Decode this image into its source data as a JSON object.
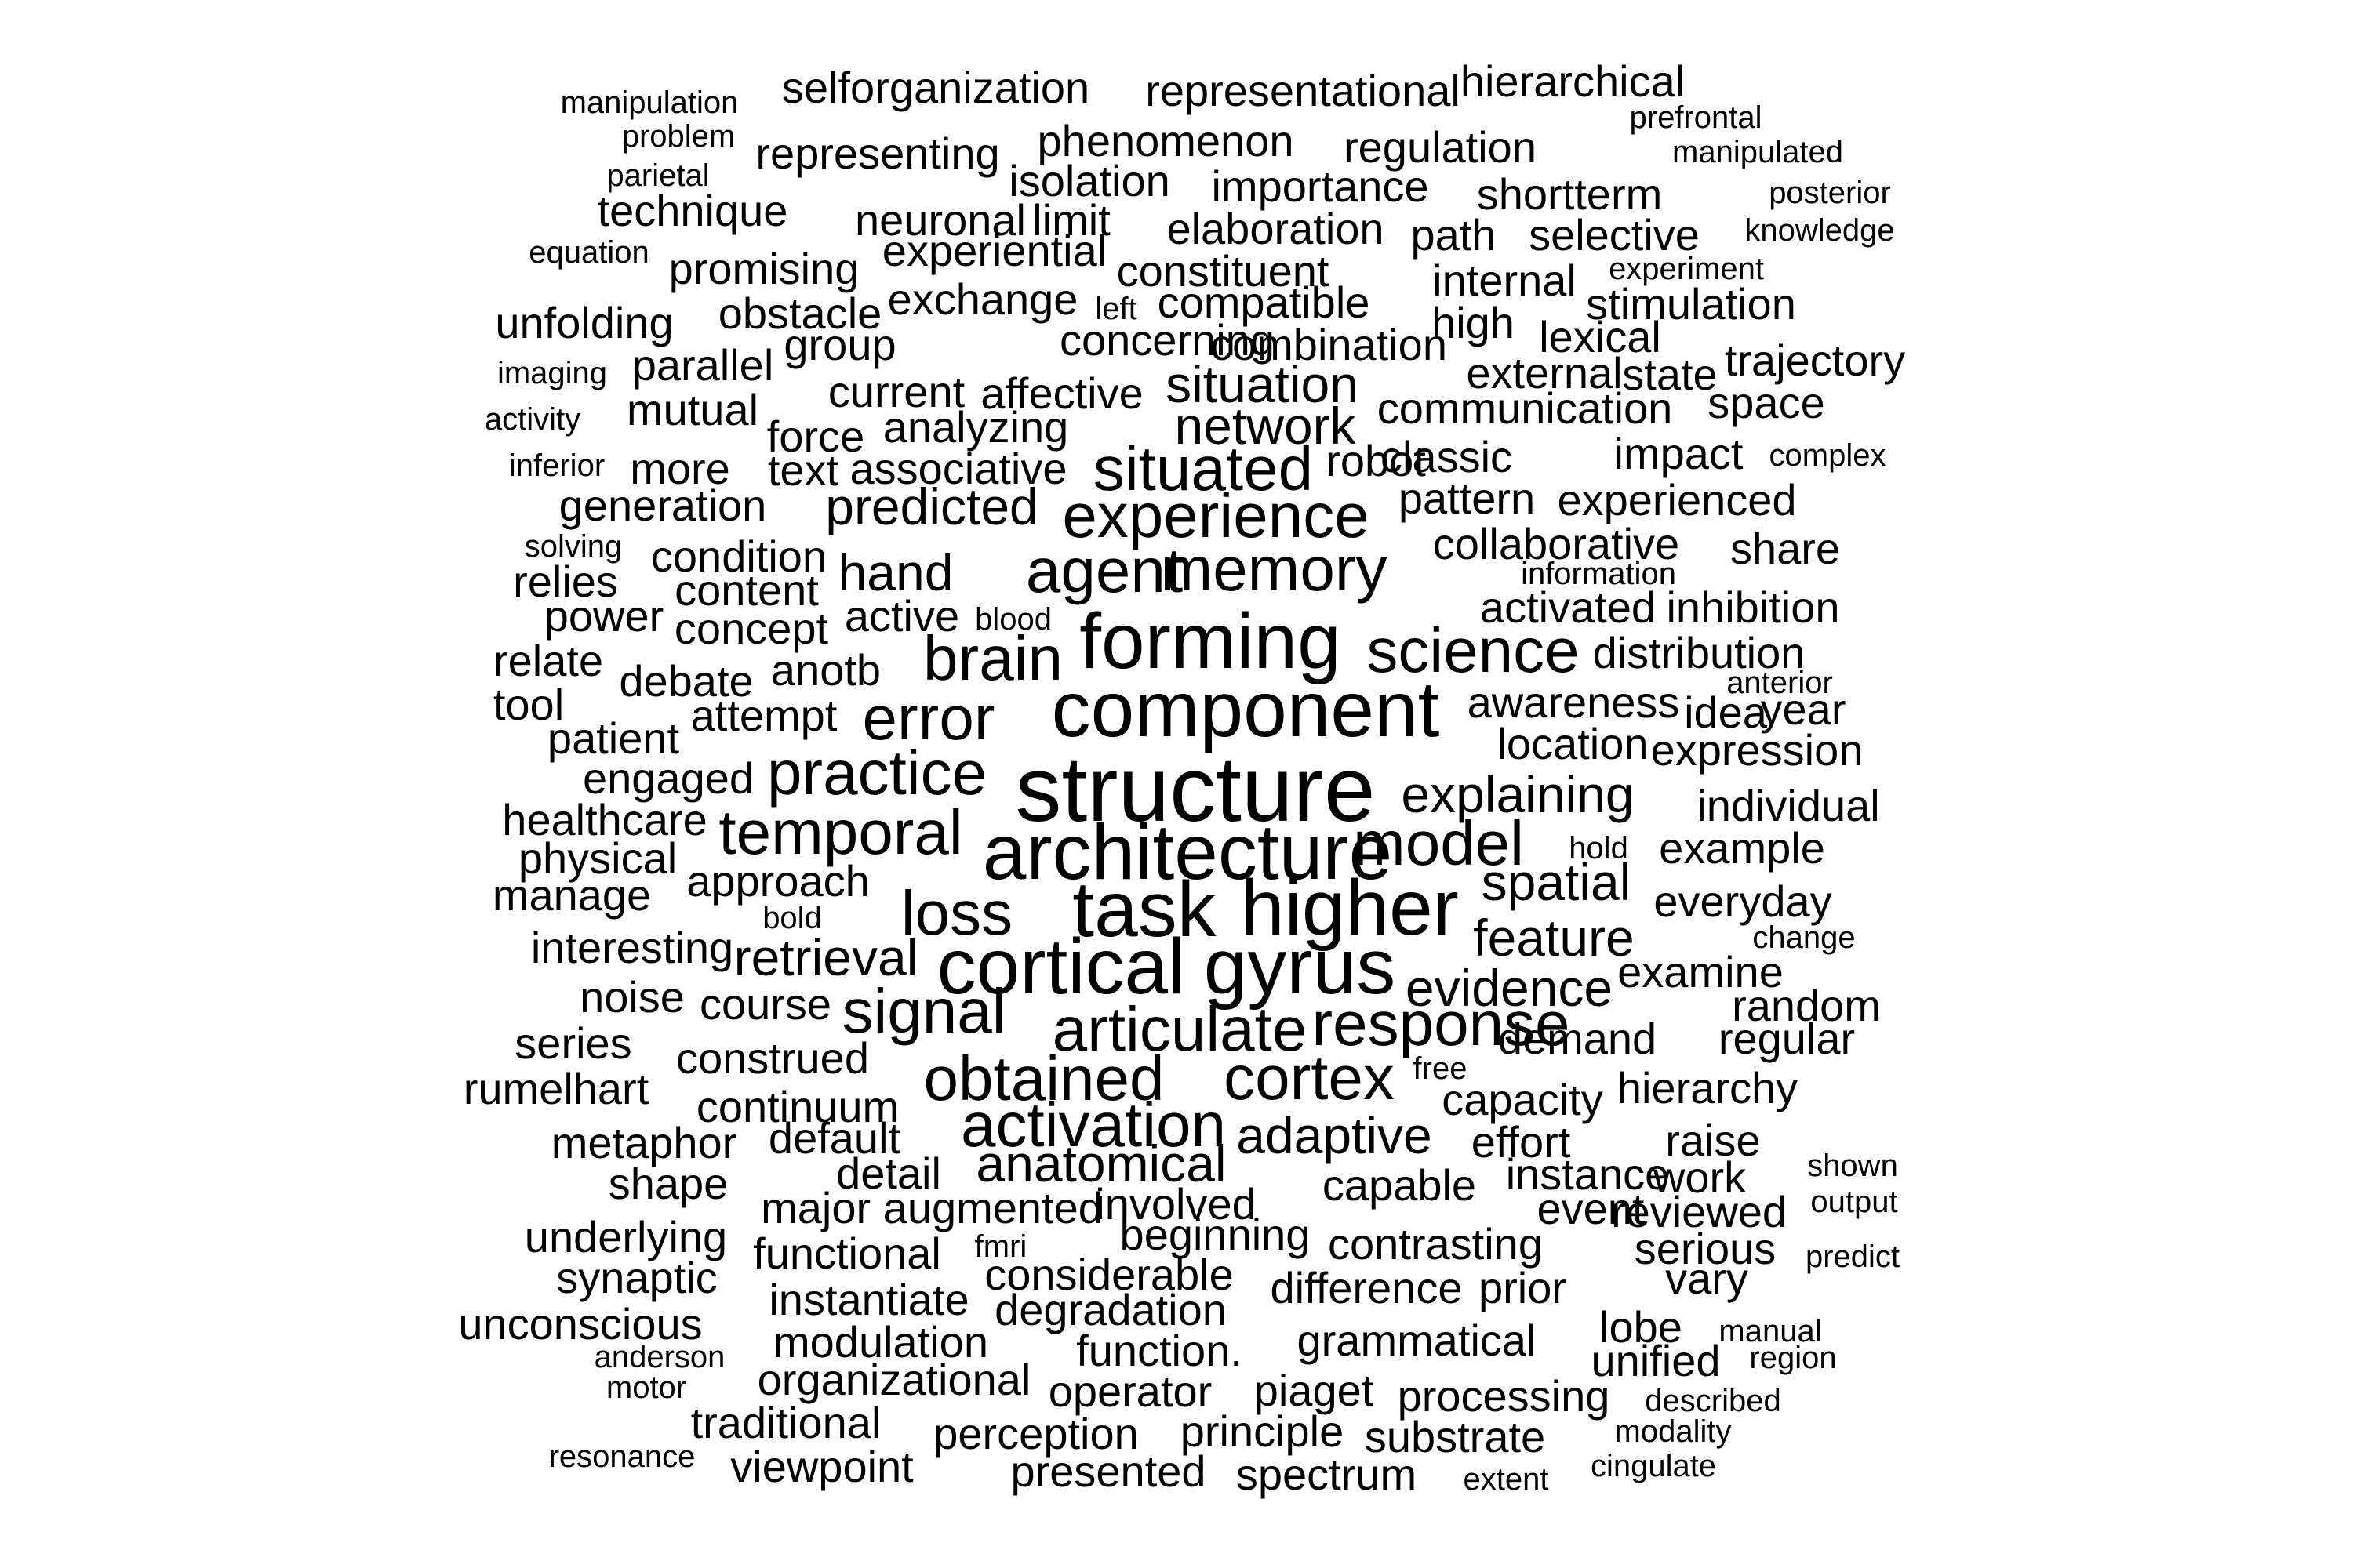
{
  "words": [
    {
      "text": "manipulation",
      "size": 1
    },
    {
      "text": "selforganization",
      "size": 3
    },
    {
      "text": "representational",
      "size": 3
    },
    {
      "text": "hierarchical",
      "size": 3
    },
    {
      "text": "prefrontal",
      "size": 1
    },
    {
      "text": "problem",
      "size": 1
    },
    {
      "text": "phenomenon",
      "size": 3
    },
    {
      "text": "manipulated",
      "size": 1
    },
    {
      "text": "parietal",
      "size": 1
    },
    {
      "text": "representing",
      "size": 3
    },
    {
      "text": "regulation",
      "size": 3
    },
    {
      "text": "technique",
      "size": 3
    },
    {
      "text": "isolation",
      "size": 3
    },
    {
      "text": "importance",
      "size": 3
    },
    {
      "text": "shortterm",
      "size": 3
    },
    {
      "text": "posterior",
      "size": 1
    },
    {
      "text": "neuronal",
      "size": 3
    },
    {
      "text": "limit",
      "size": 3
    },
    {
      "text": "elaboration",
      "size": 3
    },
    {
      "text": "path",
      "size": 3
    },
    {
      "text": "selective",
      "size": 3
    },
    {
      "text": "knowledge",
      "size": 1
    },
    {
      "text": "equation",
      "size": 1
    },
    {
      "text": "experiential",
      "size": 3
    },
    {
      "text": "promising",
      "size": 3
    },
    {
      "text": "constituent",
      "size": 3
    },
    {
      "text": "internal",
      "size": 3
    },
    {
      "text": "experiment",
      "size": 1
    },
    {
      "text": "exchange",
      "size": 3
    },
    {
      "text": "compatible",
      "size": 3
    },
    {
      "text": "stimulation",
      "size": 3
    },
    {
      "text": "unfolding",
      "size": 3
    },
    {
      "text": "obstacle",
      "size": 3
    },
    {
      "text": "left",
      "size": 1
    },
    {
      "text": "high",
      "size": 3
    },
    {
      "text": "lexical",
      "size": 3
    },
    {
      "text": "concerning",
      "size": 3
    },
    {
      "text": "group",
      "size": 3
    },
    {
      "text": "combination",
      "size": 3
    },
    {
      "text": "trajectory",
      "size": 3
    },
    {
      "text": "imaging",
      "size": 1
    },
    {
      "text": "parallel",
      "size": 3
    },
    {
      "text": "external",
      "size": 3
    },
    {
      "text": "state",
      "size": 3
    },
    {
      "text": "situation",
      "size": 4
    },
    {
      "text": "current",
      "size": 3
    },
    {
      "text": "affective",
      "size": 3
    },
    {
      "text": "space",
      "size": 3
    },
    {
      "text": "activity",
      "size": 1
    },
    {
      "text": "mutual",
      "size": 3
    },
    {
      "text": "communication",
      "size": 3
    },
    {
      "text": "analyzing",
      "size": 3
    },
    {
      "text": "network",
      "size": 4
    },
    {
      "text": "force",
      "size": 3
    },
    {
      "text": "classic",
      "size": 3
    },
    {
      "text": "impact",
      "size": 3
    },
    {
      "text": "complex",
      "size": 1
    },
    {
      "text": "inferior",
      "size": 1
    },
    {
      "text": "more",
      "size": 3
    },
    {
      "text": "text",
      "size": 3
    },
    {
      "text": "associative",
      "size": 3
    },
    {
      "text": "robot",
      "size": 3
    },
    {
      "text": "situated",
      "size": 5
    },
    {
      "text": "generation",
      "size": 3
    },
    {
      "text": "pattern",
      "size": 3
    },
    {
      "text": "experienced",
      "size": 3
    },
    {
      "text": "predicted",
      "size": 4
    },
    {
      "text": "experience",
      "size": 5
    },
    {
      "text": "solving",
      "size": 1
    },
    {
      "text": "collaborative",
      "size": 3
    },
    {
      "text": "share",
      "size": 3
    },
    {
      "text": "condition",
      "size": 3
    },
    {
      "text": "information",
      "size": 1
    },
    {
      "text": "relies",
      "size": 3
    },
    {
      "text": "hand",
      "size": 4
    },
    {
      "text": "agent",
      "size": 5
    },
    {
      "text": "memory",
      "size": 5
    },
    {
      "text": "content",
      "size": 3
    },
    {
      "text": "power",
      "size": 3
    },
    {
      "text": "activated",
      "size": 3
    },
    {
      "text": "inhibition",
      "size": 3
    },
    {
      "text": "active",
      "size": 3
    },
    {
      "text": "blood",
      "size": 1
    },
    {
      "text": "concept",
      "size": 3
    },
    {
      "text": "forming",
      "size": 6
    },
    {
      "text": "science",
      "size": 5
    },
    {
      "text": "relate",
      "size": 3
    },
    {
      "text": "distribution",
      "size": 3
    },
    {
      "text": "brain",
      "size": 5
    },
    {
      "text": "anotb",
      "size": 3
    },
    {
      "text": "debate",
      "size": 3
    },
    {
      "text": "anterior",
      "size": 1
    },
    {
      "text": "tool",
      "size": 3
    },
    {
      "text": "awareness",
      "size": 3
    },
    {
      "text": "idea",
      "size": 3
    },
    {
      "text": "year",
      "size": 3
    },
    {
      "text": "attempt",
      "size": 3
    },
    {
      "text": "error",
      "size": 5
    },
    {
      "text": "component",
      "size": 6
    },
    {
      "text": "patient",
      "size": 3
    },
    {
      "text": "location",
      "size": 3
    },
    {
      "text": "expression",
      "size": 3
    },
    {
      "text": "engaged",
      "size": 3
    },
    {
      "text": "practice",
      "size": 5
    },
    {
      "text": "structure",
      "size": 7
    },
    {
      "text": "explaining",
      "size": 4
    },
    {
      "text": "individual",
      "size": 3
    },
    {
      "text": "healthcare",
      "size": 3
    },
    {
      "text": "temporal",
      "size": 5
    },
    {
      "text": "architecture",
      "size": 6
    },
    {
      "text": "model",
      "size": 5
    },
    {
      "text": "physical",
      "size": 3
    },
    {
      "text": "hold",
      "size": 1
    },
    {
      "text": "example",
      "size": 3
    },
    {
      "text": "approach",
      "size": 3
    },
    {
      "text": "spatial",
      "size": 4
    },
    {
      "text": "manage",
      "size": 3
    },
    {
      "text": "task",
      "size": 6
    },
    {
      "text": "higher",
      "size": 6
    },
    {
      "text": "everyday",
      "size": 3
    },
    {
      "text": "loss",
      "size": 5
    },
    {
      "text": "bold",
      "size": 1
    },
    {
      "text": "feature",
      "size": 4
    },
    {
      "text": "interesting",
      "size": 3
    },
    {
      "text": "retrieval",
      "size": 4
    },
    {
      "text": "change",
      "size": 1
    },
    {
      "text": "cortical",
      "size": 6
    },
    {
      "text": "gyrus",
      "size": 6
    },
    {
      "text": "examine",
      "size": 3
    },
    {
      "text": "evidence",
      "size": 4
    },
    {
      "text": "noise",
      "size": 3
    },
    {
      "text": "course",
      "size": 3
    },
    {
      "text": "signal",
      "size": 5
    },
    {
      "text": "random",
      "size": 3
    },
    {
      "text": "response",
      "size": 5
    },
    {
      "text": "articulate",
      "size": 5
    },
    {
      "text": "series",
      "size": 3
    },
    {
      "text": "demand",
      "size": 3
    },
    {
      "text": "regular",
      "size": 3
    },
    {
      "text": "construed",
      "size": 3
    },
    {
      "text": "free",
      "size": 1
    },
    {
      "text": "obtained",
      "size": 5
    },
    {
      "text": "cortex",
      "size": 5
    },
    {
      "text": "rumelhart",
      "size": 3
    },
    {
      "text": "hierarchy",
      "size": 3
    },
    {
      "text": "capacity",
      "size": 3
    },
    {
      "text": "continuum",
      "size": 3
    },
    {
      "text": "activation",
      "size": 5
    },
    {
      "text": "metaphor",
      "size": 3
    },
    {
      "text": "default",
      "size": 3
    },
    {
      "text": "adaptive",
      "size": 4
    },
    {
      "text": "effort",
      "size": 3
    },
    {
      "text": "raise",
      "size": 3
    },
    {
      "text": "anatomical",
      "size": 4
    },
    {
      "text": "shown",
      "size": 1
    },
    {
      "text": "detail",
      "size": 3
    },
    {
      "text": "instance",
      "size": 3
    },
    {
      "text": "work",
      "size": 3
    },
    {
      "text": "shape",
      "size": 3
    },
    {
      "text": "capable",
      "size": 3
    },
    {
      "text": "output",
      "size": 1
    },
    {
      "text": "involved",
      "size": 3
    },
    {
      "text": "major augmented",
      "size": 3
    },
    {
      "text": "event",
      "size": 3
    },
    {
      "text": "reviewed",
      "size": 3
    },
    {
      "text": "underlying",
      "size": 3
    },
    {
      "text": "beginning",
      "size": 3
    },
    {
      "text": "contrasting",
      "size": 3
    },
    {
      "text": "fmri",
      "size": 1
    },
    {
      "text": "serious",
      "size": 3
    },
    {
      "text": "functional",
      "size": 3
    },
    {
      "text": "predict",
      "size": 1
    },
    {
      "text": "considerable",
      "size": 3
    },
    {
      "text": "synaptic",
      "size": 3
    },
    {
      "text": "difference",
      "size": 3
    },
    {
      "text": "prior",
      "size": 3
    },
    {
      "text": "vary",
      "size": 3
    },
    {
      "text": "instantiate",
      "size": 3
    },
    {
      "text": "degradation",
      "size": 3
    },
    {
      "text": "unconscious",
      "size": 3
    },
    {
      "text": "lobe",
      "size": 3
    },
    {
      "text": "manual",
      "size": 1
    },
    {
      "text": "grammatical",
      "size": 3
    },
    {
      "text": "modulation",
      "size": 3
    },
    {
      "text": "function.",
      "size": 3
    },
    {
      "text": "anderson",
      "size": 1
    },
    {
      "text": "unified",
      "size": 3
    },
    {
      "text": "region",
      "size": 1
    },
    {
      "text": "organizational",
      "size": 3
    },
    {
      "text": "motor",
      "size": 1
    },
    {
      "text": "operator",
      "size": 3
    },
    {
      "text": "piaget",
      "size": 3
    },
    {
      "text": "processing",
      "size": 3
    },
    {
      "text": "described",
      "size": 1
    },
    {
      "text": "traditional",
      "size": 3
    },
    {
      "text": "modality",
      "size": 1
    },
    {
      "text": "perception",
      "size": 3
    },
    {
      "text": "principle",
      "size": 3
    },
    {
      "text": "substrate",
      "size": 3
    },
    {
      "text": "resonance",
      "size": 1
    },
    {
      "text": "viewpoint",
      "size": 3
    },
    {
      "text": "cingulate",
      "size": 1
    },
    {
      "text": "presented",
      "size": 3
    },
    {
      "text": "spectrum",
      "size": 3
    },
    {
      "text": "extent",
      "size": 1
    }
  ]
}
